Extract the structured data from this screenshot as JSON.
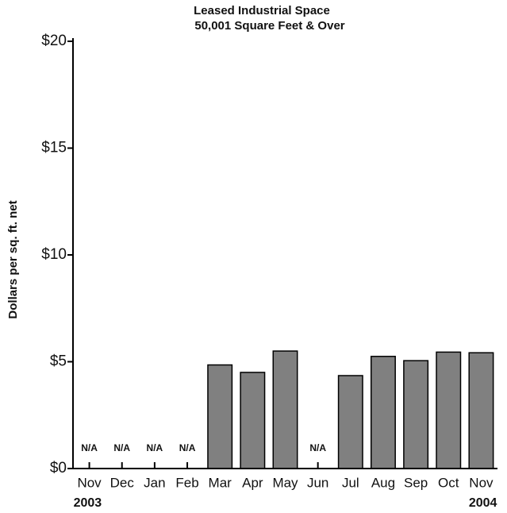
{
  "chart_data": {
    "type": "bar",
    "title": "Leased Industrial Space",
    "subtitle": "50,001  Square Feet & Over",
    "y_label": "Dollars per sq. ft. net",
    "categories": [
      "Nov",
      "Dec",
      "Jan",
      "Feb",
      "Mar",
      "Apr",
      "May",
      "Jun",
      "Jul",
      "Aug",
      "Sep",
      "Oct",
      "Nov"
    ],
    "year_labels": [
      "2003",
      "2004"
    ],
    "values": [
      null,
      null,
      null,
      null,
      4.85,
      4.5,
      5.5,
      null,
      4.35,
      5.25,
      5.05,
      5.45,
      5.42
    ],
    "value_labels": [
      "N/A",
      "N/A",
      "N/A",
      "N/A",
      null,
      null,
      null,
      "N/A",
      null,
      null,
      null,
      null,
      null
    ],
    "color": "#808080",
    "ylim": [
      0,
      20
    ],
    "yticks": [
      {
        "value": 0,
        "label": "$0"
      },
      {
        "value": 5,
        "label": "$5"
      },
      {
        "value": 10,
        "label": "$10"
      },
      {
        "value": 15,
        "label": "$15"
      },
      {
        "value": 20,
        "label": "$20"
      }
    ],
    "grid": false
  }
}
